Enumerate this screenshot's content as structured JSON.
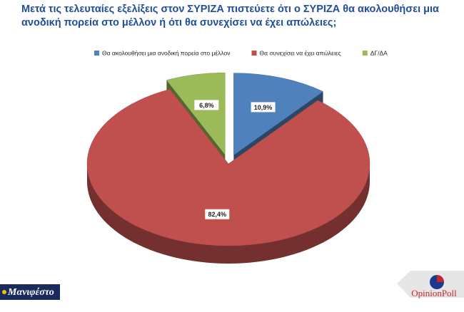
{
  "chart_data": {
    "type": "pie",
    "title": "Μετά τις τελευταίες εξελίξεις στον ΣΥΡΙΖΑ πιστεύετε ότι ο ΣΥΡΙΖΑ θα ακολουθήσει μια ανοδική πορεία στο μέλλον ή ότι θα συνεχίσει να έχει απώλειες;",
    "categories": [
      "Θα ακολουθήσει μια ανοδική πορεία στο μέλλον",
      "Θα συνεχίσει να έχει απώλειες",
      "ΔΓ/ΔΑ"
    ],
    "values": [
      10.9,
      82.4,
      6.8
    ],
    "value_labels": [
      "10,9%",
      "82,4%",
      "6,8%"
    ],
    "colors": [
      "#4f81bd",
      "#c0504d",
      "#9bbb59"
    ],
    "legend": "top"
  },
  "branding": {
    "left": "Μανιφέστο",
    "right": "OpinionPoll"
  }
}
